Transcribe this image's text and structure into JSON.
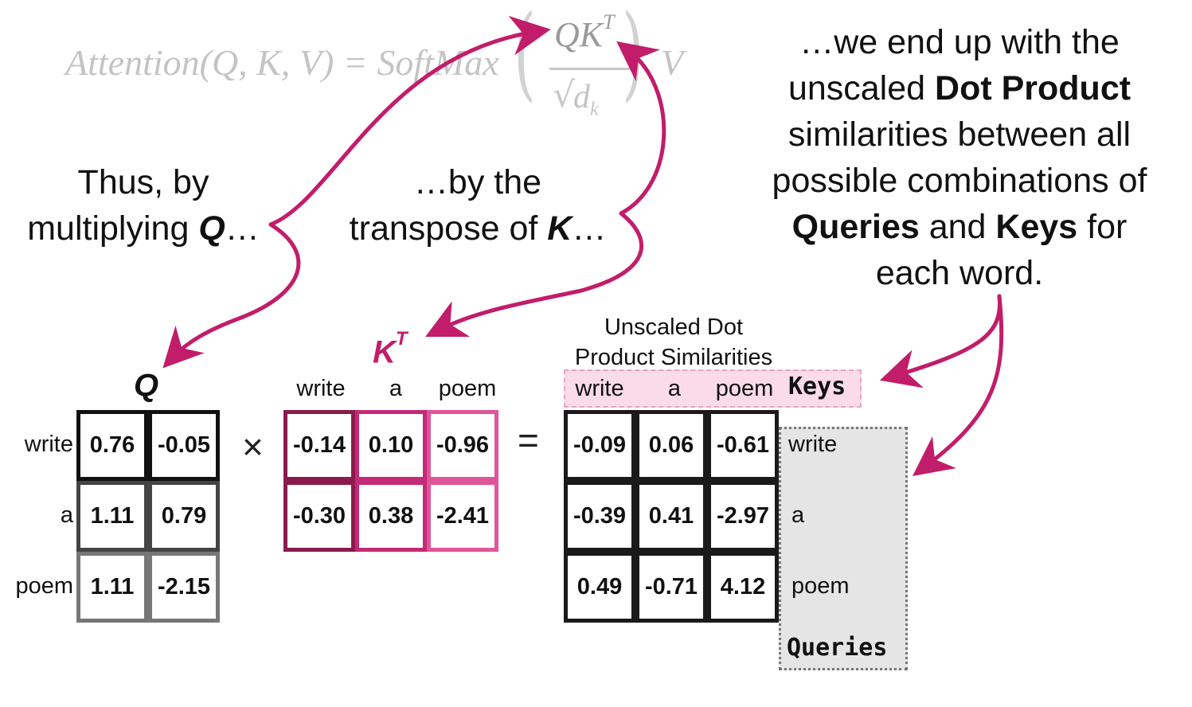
{
  "formula": {
    "lhs": "Attention(Q, K, V) = SoftMax",
    "numerator": "QK",
    "numerator_sup": "T",
    "denominator": "d",
    "denominator_sub": "k",
    "rhs": "V"
  },
  "captions": {
    "left_line1": "Thus, by",
    "left_line2_pre": "multiplying ",
    "left_line2_bold": "Q",
    "left_line2_post": "…",
    "mid_line1": "…by the",
    "mid_line2_pre": "transpose of ",
    "mid_line2_bold": "K",
    "mid_line2_post": "…",
    "right_line1": "…we end up with the",
    "right_line2_pre": "unscaled ",
    "right_line2_bold": "Dot Product",
    "right_line3": "similarities between all",
    "right_line4": "possible combinations of",
    "right_line5_bold1": "Queries",
    "right_line5_mid": " and ",
    "right_line5_bold2": "Keys",
    "right_line5_post": " for",
    "right_line6": "each word."
  },
  "matrix_q": {
    "title": "Q",
    "row_labels": [
      "write",
      "a",
      "poem"
    ],
    "values": [
      [
        "0.76",
        "-0.05"
      ],
      [
        "1.11",
        "0.79"
      ],
      [
        "1.11",
        "-2.15"
      ]
    ]
  },
  "matrix_kt": {
    "title": "K",
    "title_sup": "T",
    "col_labels": [
      "write",
      "a",
      "poem"
    ],
    "values": [
      [
        "-0.14",
        "0.10",
        "-0.96"
      ],
      [
        "-0.30",
        "0.38",
        "-2.41"
      ]
    ]
  },
  "matrix_result": {
    "title_line1": "Unscaled Dot",
    "title_line2": "Product Similarities",
    "col_labels": [
      "write",
      "a",
      "poem"
    ],
    "row_labels": [
      "write",
      "a",
      "poem"
    ],
    "keys_label": "Keys",
    "queries_label": "Queries",
    "values": [
      [
        "-0.09",
        "0.06",
        "-0.61"
      ],
      [
        "-0.39",
        "0.41",
        "-2.97"
      ],
      [
        "0.49",
        "-0.71",
        "4.12"
      ]
    ]
  },
  "operators": {
    "times": "×",
    "equals": "="
  },
  "colors": {
    "accent": "#c21d6a",
    "q_borders": [
      "#111111",
      "#444444",
      "#777777"
    ],
    "kt_borders": [
      "#8a1b4c",
      "#c42a75",
      "#e0559a"
    ],
    "result_border": "#1a1a1a"
  }
}
